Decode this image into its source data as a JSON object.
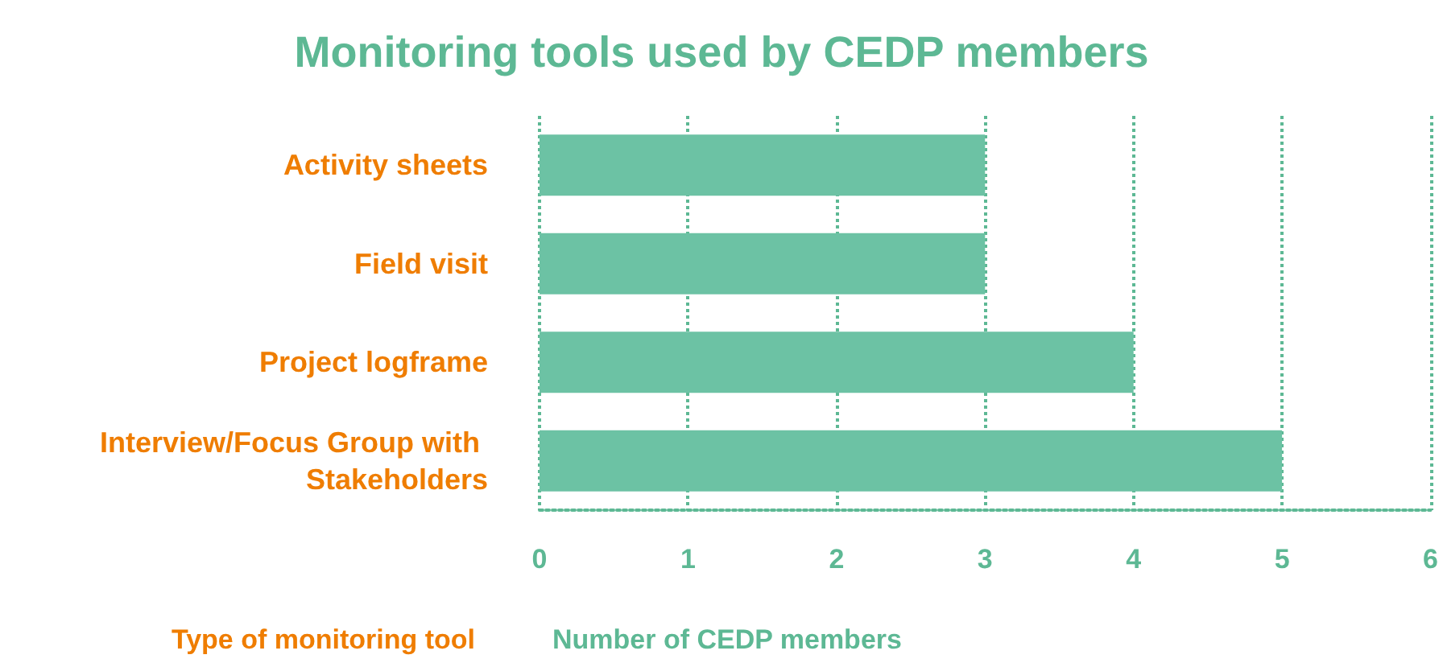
{
  "chart_data": {
    "type": "bar",
    "orientation": "horizontal",
    "title": "Monitoring tools used by CEDP members",
    "categories": [
      "Activity sheets",
      "Field visit",
      "Project logframe",
      "Interview/Focus Group with Stakeholders"
    ],
    "values": [
      3,
      3,
      4,
      5
    ],
    "color": "#6cc2a4",
    "xlim": [
      0,
      6
    ],
    "xticks": [
      0,
      1,
      2,
      3,
      4,
      5,
      6
    ],
    "grid": "x",
    "xlabel": "Number of CEDP members",
    "ylabel": "Type of monitoring tool"
  }
}
